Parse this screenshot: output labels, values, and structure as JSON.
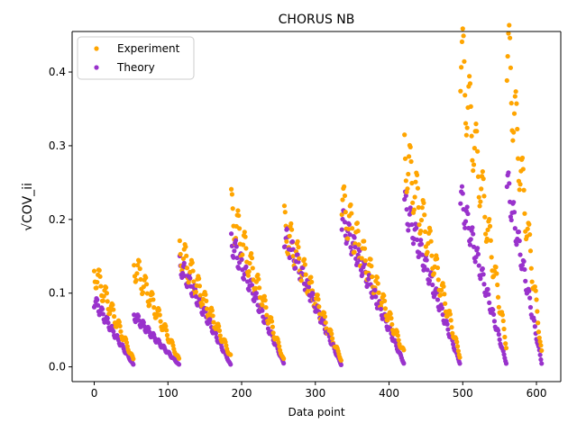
{
  "chart_data": {
    "type": "scatter",
    "title": "CHORUS NB",
    "xlabel": "Data point",
    "ylabel": "√COV_ii",
    "xlim": [
      -30,
      633
    ],
    "ylim": [
      -0.02,
      0.455
    ],
    "xticks": [
      0,
      100,
      200,
      300,
      400,
      500,
      600
    ],
    "yticks": [
      0.0,
      0.1,
      0.2,
      0.3,
      0.4
    ],
    "grid": false,
    "legend_position": "upper-left",
    "groups": [
      {
        "x_start": 0,
        "x_end": 53,
        "exp_start": 0.13,
        "exp_end": 0.01,
        "th_start": 0.09,
        "th_end": 0.003
      },
      {
        "x_start": 54,
        "x_end": 115,
        "exp_start": 0.14,
        "exp_end": 0.01,
        "th_start": 0.07,
        "th_end": 0.003
      },
      {
        "x_start": 116,
        "x_end": 185,
        "exp_start": 0.16,
        "exp_end": 0.015,
        "th_start": 0.14,
        "th_end": 0.003
      },
      {
        "x_start": 186,
        "x_end": 257,
        "exp_start": 0.21,
        "exp_end": 0.01,
        "th_start": 0.17,
        "th_end": 0.005
      },
      {
        "x_start": 258,
        "x_end": 335,
        "exp_start": 0.19,
        "exp_end": 0.01,
        "th_start": 0.18,
        "th_end": 0.003
      },
      {
        "x_start": 336,
        "x_end": 420,
        "exp_start": 0.22,
        "exp_end": 0.02,
        "th_start": 0.2,
        "th_end": 0.005
      },
      {
        "x_start": 421,
        "x_end": 496,
        "exp_start": 0.29,
        "exp_end": 0.015,
        "th_start": 0.22,
        "th_end": 0.005
      },
      {
        "x_start": 497,
        "x_end": 559,
        "exp_start": 0.42,
        "exp_end": 0.03,
        "th_start": 0.23,
        "th_end": 0.005
      },
      {
        "x_start": 560,
        "x_end": 607,
        "exp_start": 0.43,
        "exp_end": 0.02,
        "th_start": 0.25,
        "th_end": 0.005
      }
    ],
    "series": [
      {
        "name": "Experiment",
        "color": "#ffa500",
        "marker": "circle"
      },
      {
        "name": "Theory",
        "color": "#9932cc",
        "marker": "circle"
      }
    ]
  }
}
